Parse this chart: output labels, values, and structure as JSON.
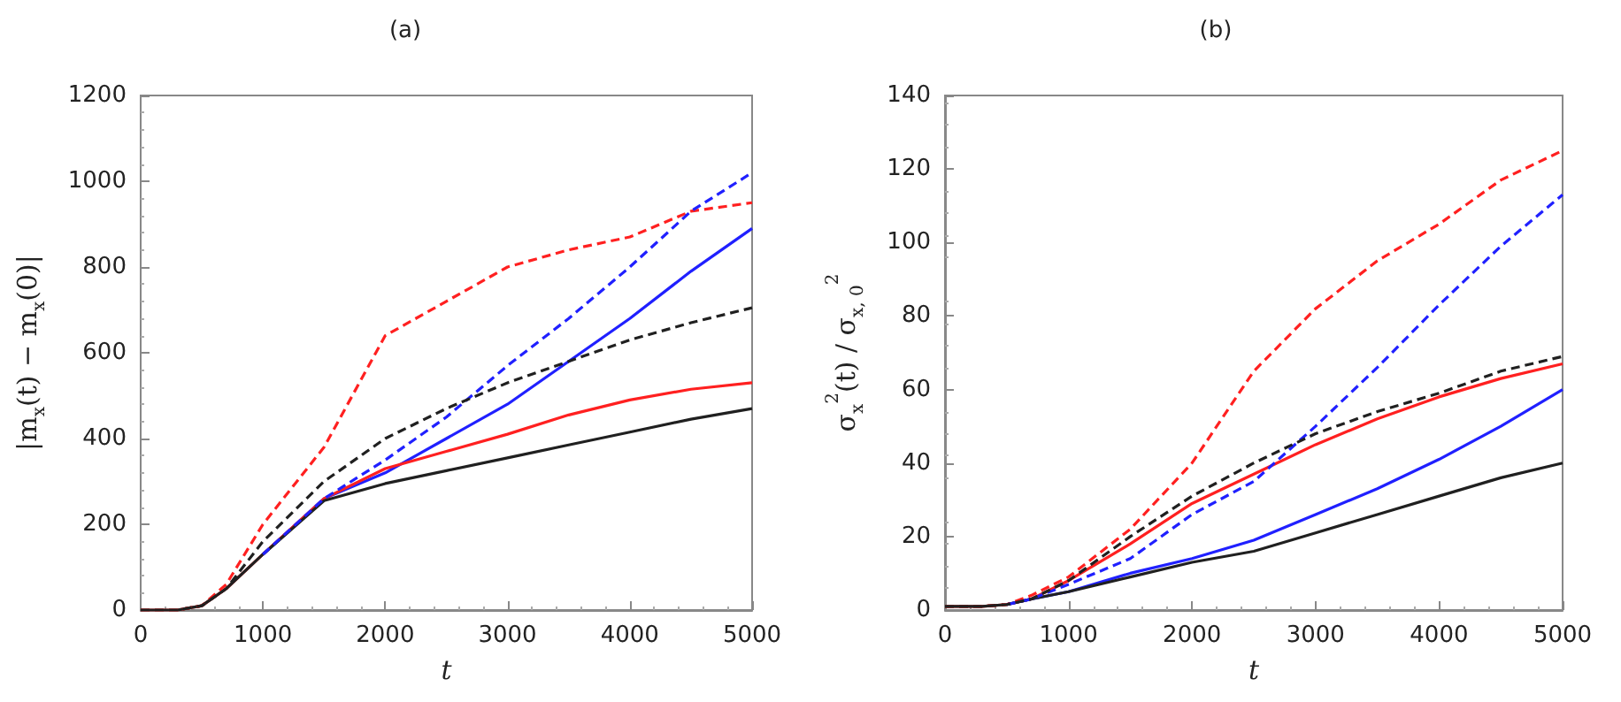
{
  "chart_data": [
    {
      "type": "line",
      "title": "(a)",
      "xlabel": "t",
      "ylabel": "|m$_{x}$(t) − m$_{x}$(0)|",
      "x": [
        0,
        300,
        500,
        700,
        1000,
        1500,
        2000,
        2500,
        3000,
        3500,
        4000,
        4500,
        5000
      ],
      "xlim": [
        0,
        5000
      ],
      "xticks": [
        0,
        1000,
        2000,
        3000,
        4000,
        5000
      ],
      "ylim": [
        0,
        1200
      ],
      "yticks": [
        0,
        200,
        400,
        600,
        800,
        1000,
        1200
      ],
      "grid": false,
      "marker": "none",
      "series": [
        {
          "color": "#ff2020",
          "line_style": "dashed",
          "values": [
            0,
            0,
            10,
            60,
            200,
            380,
            640,
            720,
            800,
            840,
            870,
            930,
            950
          ]
        },
        {
          "color": "#2020ff",
          "line_style": "dashed",
          "values": [
            null,
            null,
            null,
            null,
            130,
            260,
            350,
            450,
            570,
            680,
            800,
            930,
            1020
          ]
        },
        {
          "color": "#2020ff",
          "line_style": "solid",
          "values": [
            null,
            null,
            null,
            null,
            130,
            260,
            320,
            400,
            480,
            580,
            680,
            790,
            890
          ]
        },
        {
          "color": "#202020",
          "line_style": "dashed",
          "values": [
            0,
            0,
            10,
            50,
            160,
            300,
            400,
            470,
            530,
            580,
            630,
            670,
            705
          ]
        },
        {
          "color": "#ff2020",
          "line_style": "solid",
          "values": [
            0,
            0,
            10,
            50,
            130,
            260,
            330,
            370,
            410,
            455,
            490,
            515,
            530
          ]
        },
        {
          "color": "#202020",
          "line_style": "solid",
          "values": [
            0,
            0,
            10,
            50,
            130,
            255,
            295,
            325,
            355,
            385,
            415,
            445,
            470
          ]
        }
      ]
    },
    {
      "type": "line",
      "title": "(b)",
      "xlabel": "t",
      "ylabel": "σ$_{x}$$^{2}$(t) / σ$_{x, 0}$$^{2}$",
      "x": [
        0,
        300,
        500,
        700,
        1000,
        1500,
        2000,
        2500,
        3000,
        3500,
        4000,
        4500,
        5000
      ],
      "xlim": [
        0,
        5000
      ],
      "xticks": [
        0,
        1000,
        2000,
        3000,
        4000,
        5000
      ],
      "ylim": [
        0,
        140
      ],
      "yticks": [
        0,
        20,
        40,
        60,
        80,
        100,
        120,
        140
      ],
      "grid": false,
      "marker": "none",
      "series": [
        {
          "color": "#ff2020",
          "line_style": "dashed",
          "values": [
            1,
            1,
            1.5,
            4,
            9,
            22,
            40,
            65,
            82,
            95,
            105,
            117,
            125
          ]
        },
        {
          "color": "#2020ff",
          "line_style": "dashed",
          "values": [
            null,
            null,
            1.5,
            3,
            7,
            14,
            26,
            35,
            50,
            66,
            83,
            99,
            113
          ]
        },
        {
          "color": "#202020",
          "line_style": "dashed",
          "values": [
            1,
            1,
            1.5,
            3,
            8,
            20,
            31,
            40,
            48,
            54,
            59,
            65,
            69
          ]
        },
        {
          "color": "#ff2020",
          "line_style": "solid",
          "values": [
            1,
            1,
            1.5,
            3,
            8,
            18,
            29,
            37,
            45,
            52,
            58,
            63,
            67
          ]
        },
        {
          "color": "#2020ff",
          "line_style": "solid",
          "values": [
            null,
            null,
            1.5,
            3,
            5,
            10,
            14,
            19,
            26,
            33,
            41,
            50,
            60
          ]
        },
        {
          "color": "#202020",
          "line_style": "solid",
          "values": [
            1,
            1,
            1.5,
            3,
            5,
            9,
            13,
            16,
            21,
            26,
            31,
            36,
            40
          ]
        }
      ]
    }
  ]
}
